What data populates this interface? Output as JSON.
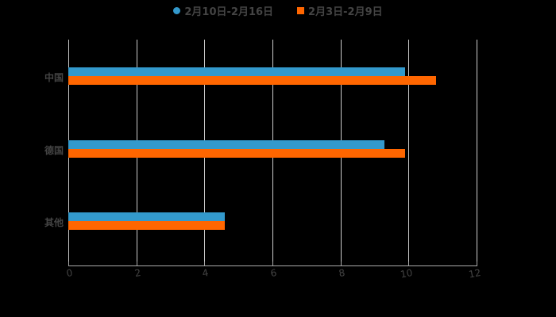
{
  "chart_data": {
    "type": "bar",
    "orientation": "horizontal",
    "title": "",
    "categories": [
      "中国",
      "德国",
      "其他"
    ],
    "series": [
      {
        "name": "2月10日-2月16日",
        "color": "#3399cc",
        "values": [
          9.9,
          9.3,
          4.6
        ]
      },
      {
        "name": "2月3日-2月9日",
        "color": "#ff6600",
        "values": [
          10.8,
          9.9,
          4.6
        ]
      }
    ],
    "xlabel": "",
    "ylabel": "",
    "xlim": [
      0,
      12
    ],
    "xticks": [
      "0",
      "2",
      "4",
      "6",
      "8",
      "10",
      "12"
    ],
    "grid": true,
    "legend_position": "top"
  },
  "legend": {
    "items": [
      {
        "label": "2月10日-2月16日",
        "color": "#3399cc",
        "shape": "circle"
      },
      {
        "label": "2月3日-2月9日",
        "color": "#ff6600",
        "shape": "square"
      }
    ]
  },
  "axis": {
    "ticks": [
      "0",
      "2",
      "4",
      "6",
      "8",
      "10",
      "12"
    ]
  },
  "categories": [
    "中国",
    "德国",
    "其他"
  ]
}
